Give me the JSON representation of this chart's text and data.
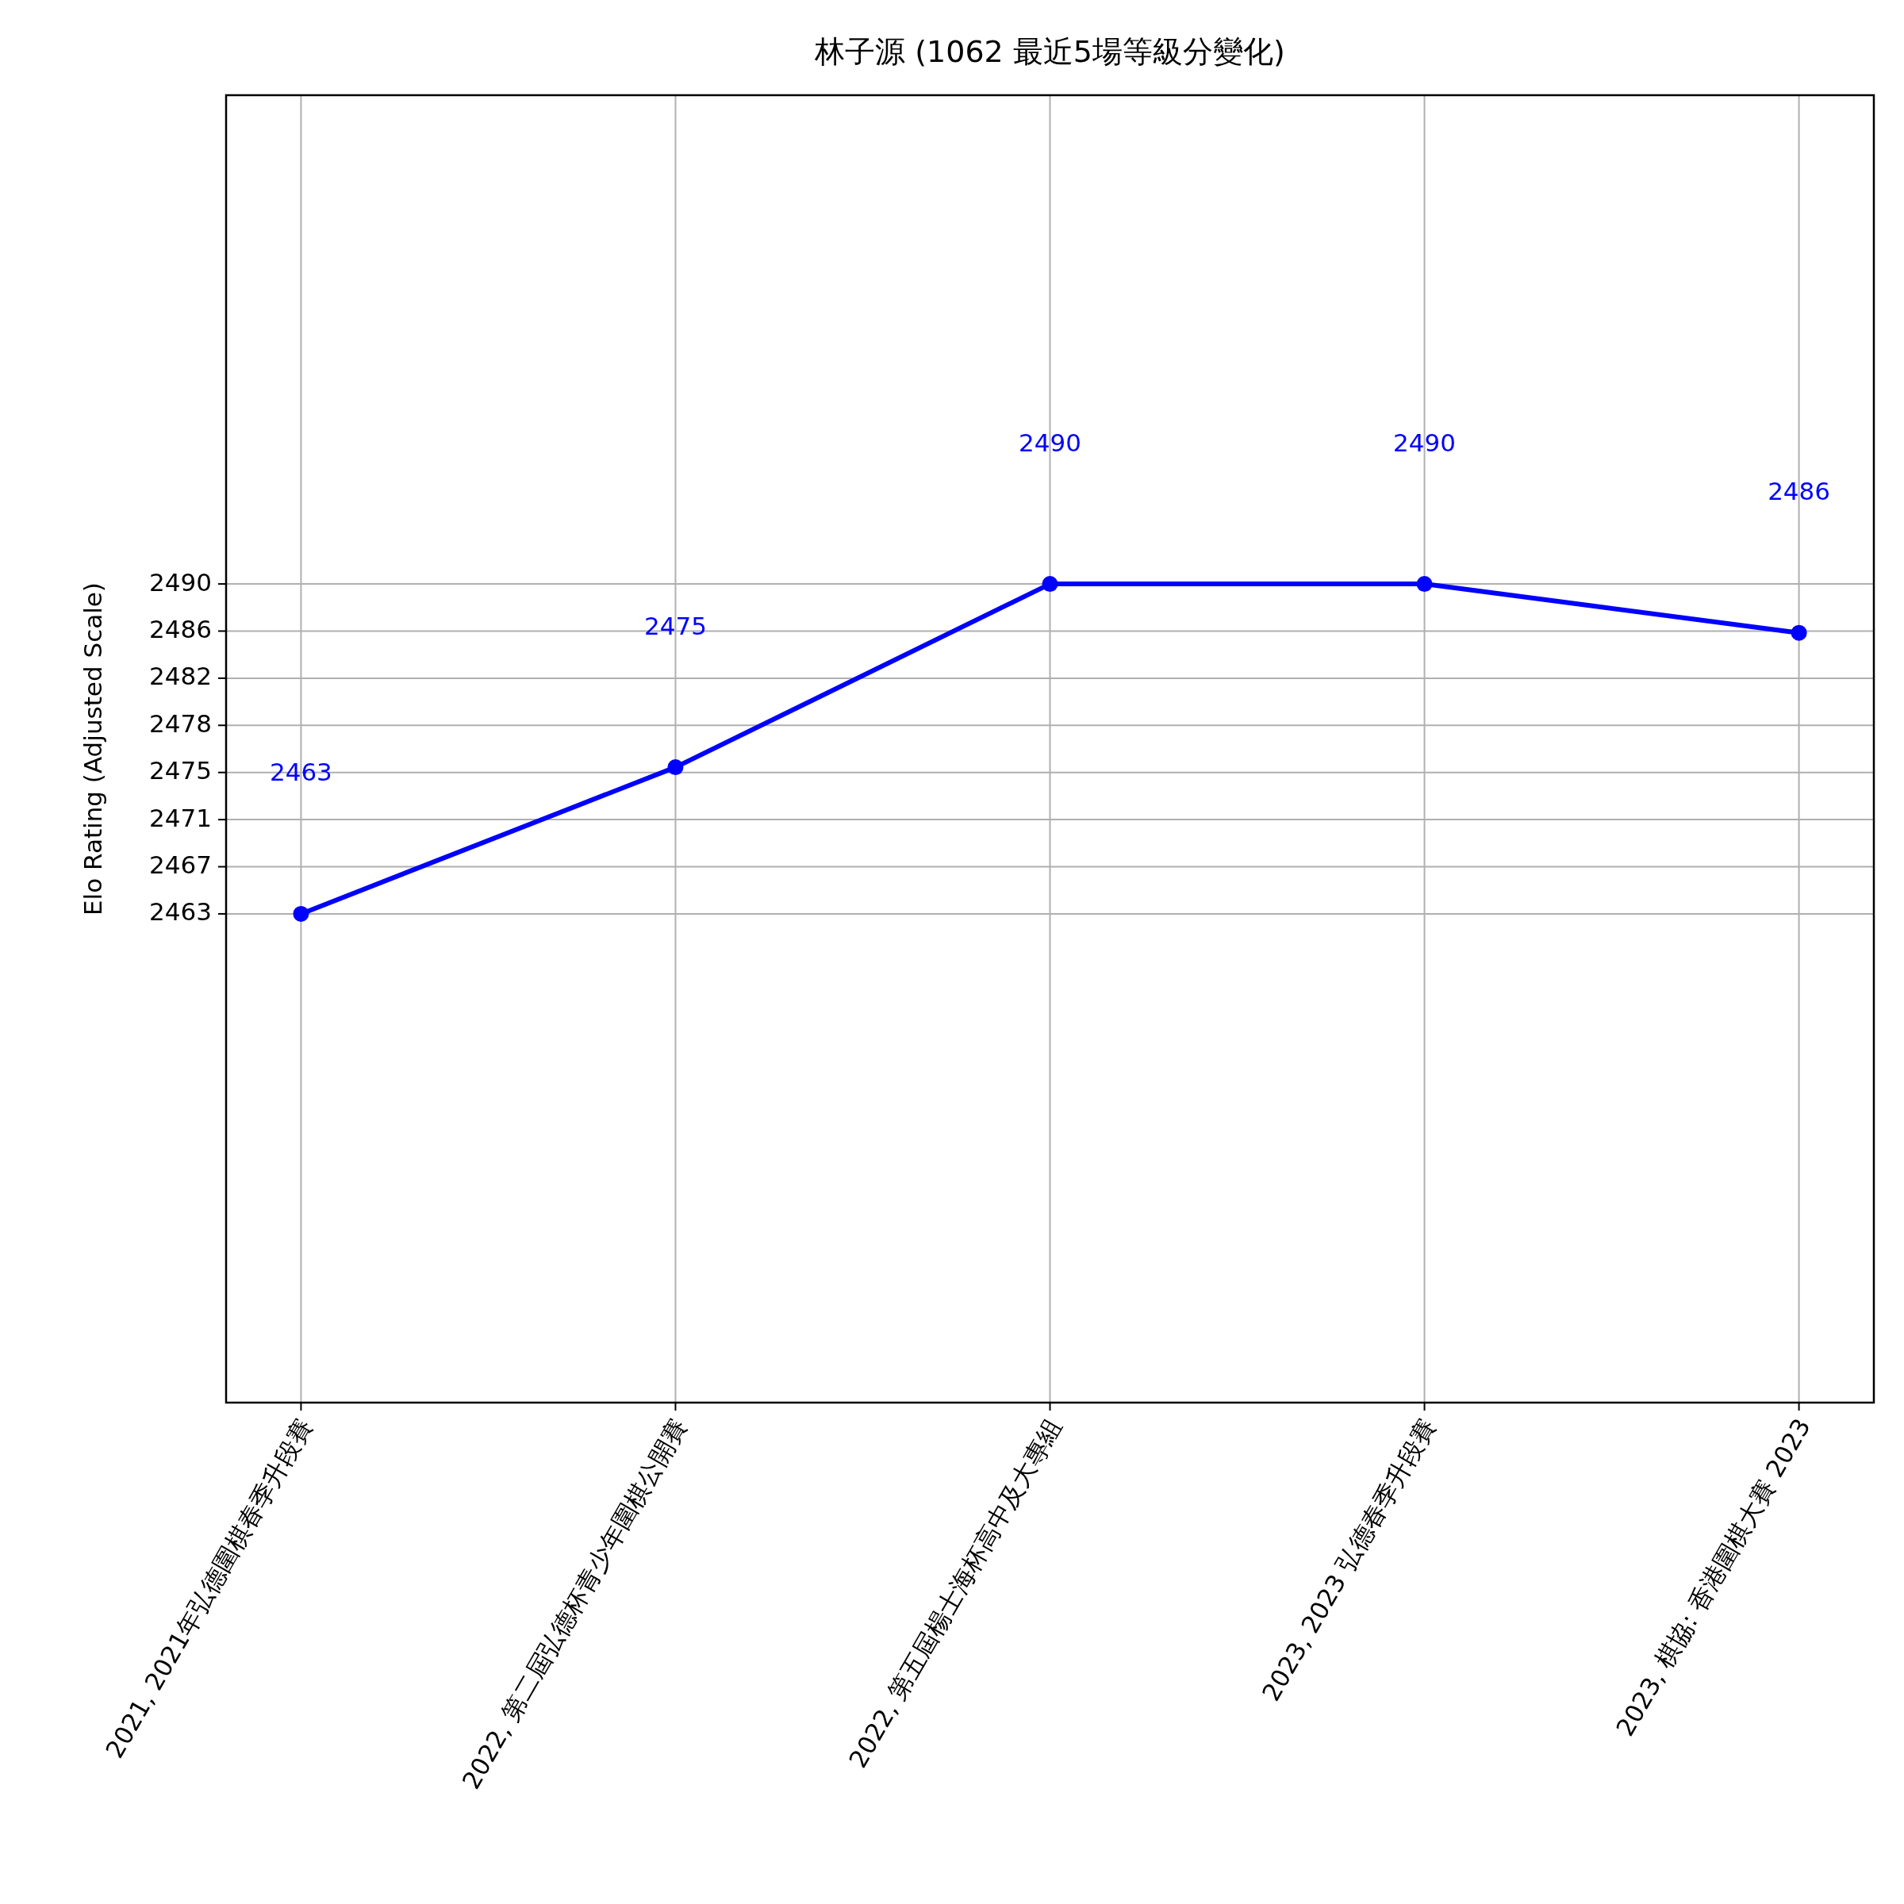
{
  "chart_data": {
    "type": "line",
    "title": "林子源 (1062 最近5場等級分變化)",
    "ylabel": "Elo Rating (Adjusted Scale)",
    "categories": [
      "2021, 2021年弘德圍棋春季升段賽",
      "2022, 第二屆弘德杯青少年圍棋公開賽",
      "2022, 第五屆楊士海杯高中及大專組",
      "2023, 2023 弘德春季升段賽",
      "2023, 棋協: 香港圍棋大賽 2023"
    ],
    "series": [
      {
        "color": "#0000ff",
        "values": [
          2463,
          2475,
          2490,
          2490,
          2486
        ]
      }
    ],
    "ylim": [
      2423,
      2530
    ],
    "yticks": [
      2463,
      {
        "value": 2466.857,
        "label": "2467"
      },
      {
        "value": 2470.714,
        "label": "2471"
      },
      {
        "value": 2474.571,
        "label": "2475"
      },
      {
        "value": 2478.429,
        "label": "2478"
      },
      {
        "value": 2482.286,
        "label": "2482"
      },
      {
        "value": 2486.143,
        "label": "2486"
      },
      2490
    ],
    "annotations": [
      "2463",
      "2475",
      "2490",
      "2490",
      "2486"
    ],
    "grid": true,
    "marker": "circle",
    "line_style": "solid"
  }
}
